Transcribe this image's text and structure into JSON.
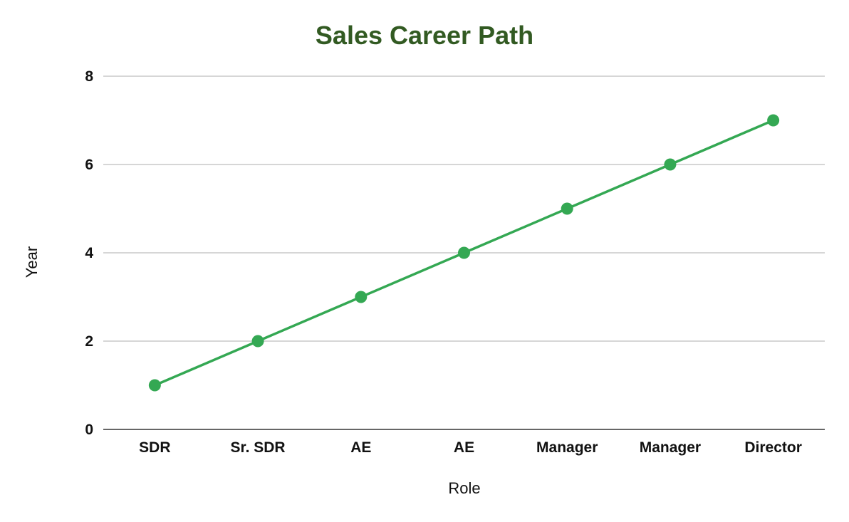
{
  "chart_data": {
    "type": "line",
    "title": "Sales Career Path",
    "xlabel": "Role",
    "ylabel": "Year",
    "categories": [
      "SDR",
      "Sr. SDR",
      "AE",
      "AE",
      "Manager",
      "Manager",
      "Director"
    ],
    "series": [
      {
        "values": [
          1,
          2,
          3,
          4,
          5,
          6,
          7
        ],
        "color": "#34a853"
      }
    ],
    "ylim": [
      0,
      8
    ],
    "yticks": [
      0,
      2,
      4,
      6,
      8
    ],
    "grid": true,
    "legend": "none",
    "title_color": "#325a22"
  }
}
